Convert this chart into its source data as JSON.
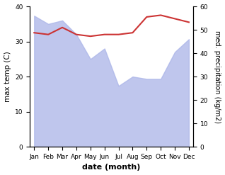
{
  "months": [
    "Jan",
    "Feb",
    "Mar",
    "Apr",
    "May",
    "Jun",
    "Jul",
    "Aug",
    "Sep",
    "Oct",
    "Nov",
    "Dec"
  ],
  "temp_line": [
    32.5,
    32.0,
    34.0,
    32.0,
    31.5,
    32.0,
    32.0,
    32.5,
    37.0,
    37.5,
    36.5,
    35.5
  ],
  "precip_fill": [
    56.0,
    52.5,
    54.0,
    48.0,
    37.5,
    42.0,
    26.0,
    30.0,
    29.0,
    29.0,
    40.5,
    46.0
  ],
  "fill_color": "#aab4e8",
  "fill_alpha": 0.75,
  "line_color": "#cc3333",
  "line_width": 1.5,
  "ylabel_left": "max temp (C)",
  "ylabel_right": "med. precipitation (kg/m2)",
  "xlabel": "date (month)",
  "ylim_left": [
    0,
    40
  ],
  "ylim_right": [
    0,
    60
  ],
  "yticks_left": [
    0,
    10,
    20,
    30,
    40
  ],
  "yticks_right": [
    0,
    10,
    20,
    30,
    40,
    50,
    60
  ],
  "bg_color": "#ffffff",
  "tick_fontsize": 6.5,
  "label_fontsize": 7.5,
  "xlabel_fontsize": 8
}
